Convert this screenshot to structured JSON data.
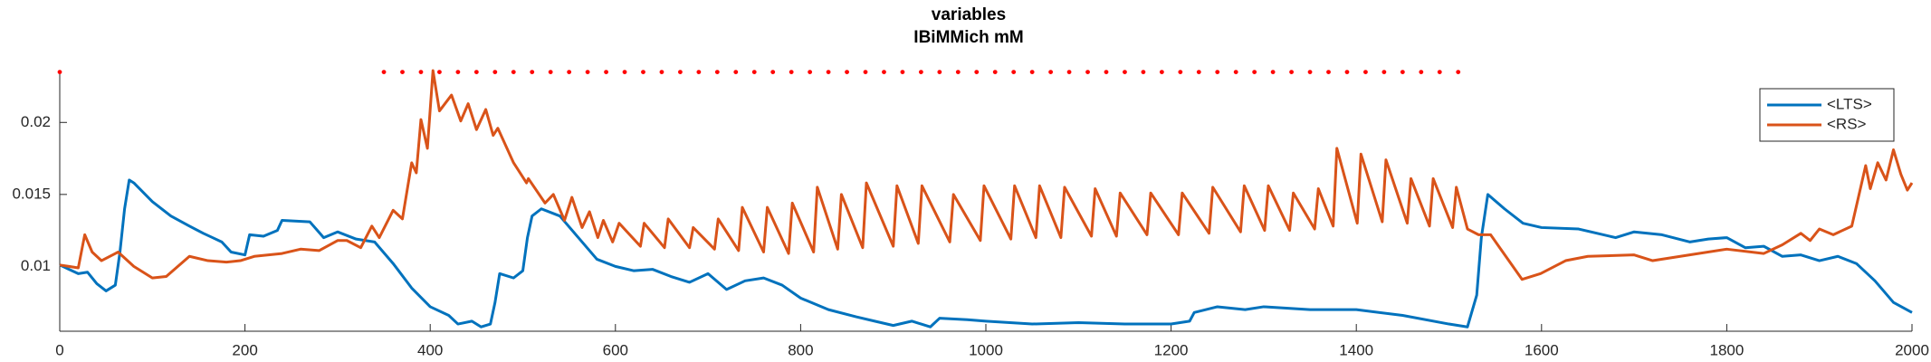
{
  "chart_data": {
    "type": "line",
    "title": "variables",
    "subtitle": "IBiMMich mM",
    "xlim": [
      0,
      2000
    ],
    "xticks": [
      0,
      200,
      400,
      600,
      800,
      1000,
      1200,
      1400,
      1600,
      1800,
      2000
    ],
    "ylim": [
      0.0055,
      0.0236
    ],
    "yticks": [
      0.01,
      0.015,
      0.02
    ],
    "grid": false,
    "legend": "northeast",
    "series": [
      {
        "name": "<LTS>",
        "color": "#0072bd",
        "x": [
          0,
          10,
          20,
          30,
          40,
          50,
          60,
          65,
          70,
          75,
          80,
          100,
          120,
          140,
          155,
          165,
          175,
          185,
          200,
          205,
          220,
          235,
          240,
          270,
          285,
          300,
          320,
          340,
          360,
          380,
          400,
          420,
          430,
          445,
          455,
          465,
          470,
          475,
          490,
          500,
          505,
          510,
          520,
          540,
          560,
          580,
          600,
          620,
          640,
          660,
          680,
          700,
          720,
          740,
          760,
          780,
          800,
          830,
          860,
          880,
          900,
          920,
          940,
          950,
          980,
          1000,
          1050,
          1100,
          1150,
          1200,
          1220,
          1225,
          1250,
          1280,
          1300,
          1350,
          1400,
          1450,
          1500,
          1520,
          1530,
          1535,
          1542,
          1560,
          1580,
          1600,
          1640,
          1680,
          1700,
          1730,
          1760,
          1780,
          1800,
          1820,
          1840,
          1860,
          1880,
          1900,
          1920,
          1940,
          1960,
          1980,
          2000
        ],
        "values": [
          0.0101,
          0.0098,
          0.0095,
          0.0096,
          0.0088,
          0.0083,
          0.0087,
          0.011,
          0.014,
          0.016,
          0.0158,
          0.0145,
          0.0135,
          0.0128,
          0.0123,
          0.012,
          0.0117,
          0.011,
          0.0108,
          0.0122,
          0.0121,
          0.0125,
          0.0132,
          0.0131,
          0.012,
          0.0124,
          0.0119,
          0.0117,
          0.0102,
          0.0085,
          0.0072,
          0.0066,
          0.006,
          0.0062,
          0.0058,
          0.006,
          0.0075,
          0.0095,
          0.0092,
          0.0097,
          0.012,
          0.0135,
          0.014,
          0.0135,
          0.012,
          0.0105,
          0.01,
          0.0097,
          0.0098,
          0.0093,
          0.0089,
          0.0095,
          0.0084,
          0.009,
          0.0092,
          0.0087,
          0.0078,
          0.007,
          0.0065,
          0.0062,
          0.0059,
          0.0062,
          0.0058,
          0.0064,
          0.0063,
          0.0062,
          0.006,
          0.0061,
          0.006,
          0.006,
          0.0062,
          0.0068,
          0.0072,
          0.007,
          0.0072,
          0.007,
          0.007,
          0.0066,
          0.006,
          0.0058,
          0.008,
          0.012,
          0.015,
          0.014,
          0.013,
          0.0127,
          0.0126,
          0.012,
          0.0124,
          0.0122,
          0.0117,
          0.0119,
          0.012,
          0.0113,
          0.0114,
          0.0107,
          0.0108,
          0.0104,
          0.0107,
          0.0102,
          0.009,
          0.0075,
          0.0068
        ]
      },
      {
        "name": "<RS>",
        "color": "#d95319",
        "x": [
          0,
          10,
          20,
          27,
          35,
          45,
          63,
          80,
          100,
          115,
          140,
          160,
          180,
          195,
          210,
          240,
          260,
          280,
          300,
          310,
          325,
          337,
          345,
          360,
          370,
          380,
          385,
          390,
          397,
          403,
          410,
          423,
          433,
          441,
          450,
          460,
          468,
          473,
          490,
          504,
          506,
          524,
          533,
          545,
          553,
          564,
          572,
          581,
          587,
          597,
          604,
          627,
          631,
          653,
          657,
          680,
          684,
          707,
          711,
          733,
          737,
          760,
          764,
          787,
          791,
          814,
          818,
          840,
          844,
          867,
          871,
          900,
          904,
          927,
          931,
          961,
          965,
          994,
          998,
          1027,
          1031,
          1054,
          1058,
          1081,
          1085,
          1114,
          1118,
          1141,
          1145,
          1174,
          1178,
          1208,
          1212,
          1241,
          1245,
          1275,
          1279,
          1301,
          1305,
          1328,
          1332,
          1355,
          1359,
          1375,
          1379,
          1401,
          1405,
          1428,
          1432,
          1455,
          1459,
          1479,
          1483,
          1504,
          1508,
          1520,
          1532,
          1545,
          1579,
          1599,
          1626,
          1650,
          1700,
          1720,
          1760,
          1800,
          1840,
          1860,
          1880,
          1890,
          1900,
          1915,
          1935,
          1950,
          1955,
          1963,
          1972,
          1980,
          1988,
          1995,
          2000
        ],
        "values": [
          0.0101,
          0.01,
          0.0099,
          0.0122,
          0.011,
          0.0104,
          0.011,
          0.01,
          0.0092,
          0.0093,
          0.0107,
          0.0104,
          0.0103,
          0.0104,
          0.0107,
          0.0109,
          0.0112,
          0.0111,
          0.0118,
          0.0118,
          0.0113,
          0.0128,
          0.012,
          0.0139,
          0.0133,
          0.0172,
          0.0165,
          0.0202,
          0.0182,
          0.0236,
          0.0208,
          0.0219,
          0.0201,
          0.0213,
          0.0195,
          0.0209,
          0.0191,
          0.0196,
          0.0172,
          0.0158,
          0.0161,
          0.0144,
          0.015,
          0.0132,
          0.0148,
          0.0127,
          0.0138,
          0.012,
          0.0132,
          0.0117,
          0.013,
          0.0114,
          0.013,
          0.0113,
          0.0133,
          0.0113,
          0.0127,
          0.0112,
          0.0133,
          0.0111,
          0.0141,
          0.011,
          0.0141,
          0.0109,
          0.0144,
          0.011,
          0.0155,
          0.0112,
          0.015,
          0.0113,
          0.0158,
          0.0114,
          0.0156,
          0.0116,
          0.0156,
          0.0117,
          0.015,
          0.0118,
          0.0156,
          0.0119,
          0.0156,
          0.012,
          0.0156,
          0.012,
          0.0155,
          0.0121,
          0.0154,
          0.0121,
          0.0151,
          0.0122,
          0.0151,
          0.0122,
          0.0151,
          0.0123,
          0.0155,
          0.0124,
          0.0156,
          0.0125,
          0.0156,
          0.0125,
          0.0151,
          0.0126,
          0.0154,
          0.0128,
          0.0182,
          0.013,
          0.0178,
          0.0131,
          0.0174,
          0.013,
          0.0161,
          0.0128,
          0.0161,
          0.0127,
          0.0155,
          0.0126,
          0.0122,
          0.0122,
          0.0091,
          0.0095,
          0.0104,
          0.0107,
          0.0108,
          0.0104,
          0.0108,
          0.0112,
          0.0109,
          0.0115,
          0.0123,
          0.0118,
          0.0126,
          0.0122,
          0.0128,
          0.017,
          0.0154,
          0.0172,
          0.016,
          0.0181,
          0.0164,
          0.0153,
          0.0158
        ]
      },
      {
        "color": "#ff0000",
        "marker": "dot",
        "x": [
          0,
          350,
          370,
          390,
          410,
          430,
          450,
          470,
          490,
          510,
          530,
          550,
          570,
          590,
          610,
          630,
          650,
          670,
          690,
          710,
          730,
          750,
          770,
          790,
          810,
          830,
          850,
          870,
          890,
          910,
          930,
          950,
          970,
          990,
          1010,
          1030,
          1050,
          1070,
          1090,
          1110,
          1130,
          1150,
          1170,
          1190,
          1210,
          1230,
          1250,
          1270,
          1290,
          1310,
          1330,
          1350,
          1370,
          1390,
          1410,
          1430,
          1450,
          1470,
          1490,
          1510
        ],
        "values": [
          0.0235,
          0.0235,
          0.0235,
          0.0235,
          0.0235,
          0.0235,
          0.0235,
          0.0235,
          0.0235,
          0.0235,
          0.0235,
          0.0235,
          0.0235,
          0.0235,
          0.0235,
          0.0235,
          0.0235,
          0.0235,
          0.0235,
          0.0235,
          0.0235,
          0.0235,
          0.0235,
          0.0235,
          0.0235,
          0.0235,
          0.0235,
          0.0235,
          0.0235,
          0.0235,
          0.0235,
          0.0235,
          0.0235,
          0.0235,
          0.0235,
          0.0235,
          0.0235,
          0.0235,
          0.0235,
          0.0235,
          0.0235,
          0.0235,
          0.0235,
          0.0235,
          0.0235,
          0.0235,
          0.0235,
          0.0235,
          0.0235,
          0.0235,
          0.0235,
          0.0235,
          0.0235,
          0.0235,
          0.0235,
          0.0235,
          0.0235,
          0.0235,
          0.0235,
          0.0235
        ]
      }
    ]
  }
}
